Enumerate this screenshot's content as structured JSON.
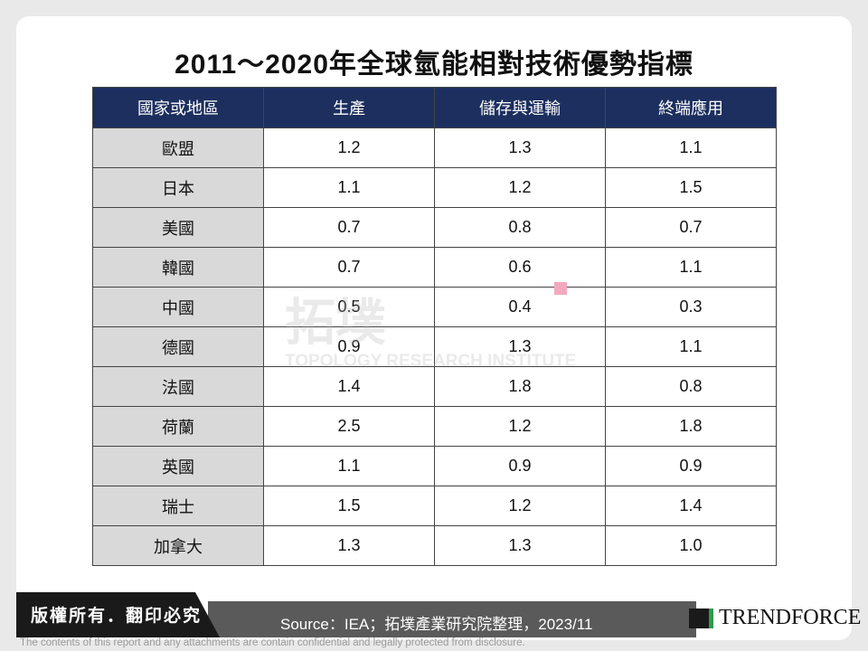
{
  "header": {
    "title": "2011～2020年全球氫能相對技術優勢指標"
  },
  "table": {
    "columns": [
      "國家或地區",
      "生產",
      "儲存與運輸",
      "終端應用"
    ],
    "rows": [
      [
        "歐盟",
        "1.2",
        "1.3",
        "1.1"
      ],
      [
        "日本",
        "1.1",
        "1.2",
        "1.5"
      ],
      [
        "美國",
        "0.7",
        "0.8",
        "0.7"
      ],
      [
        "韓國",
        "0.7",
        "0.6",
        "1.1"
      ],
      [
        "中國",
        "0.5",
        "0.4",
        "0.3"
      ],
      [
        "德國",
        "0.9",
        "1.3",
        "1.1"
      ],
      [
        "法國",
        "1.4",
        "1.8",
        "0.8"
      ],
      [
        "荷蘭",
        "2.5",
        "1.2",
        "1.8"
      ],
      [
        "英國",
        "1.1",
        "0.9",
        "0.9"
      ],
      [
        "瑞士",
        "1.5",
        "1.2",
        "1.4"
      ],
      [
        "加拿大",
        "1.3",
        "1.3",
        "1.0"
      ]
    ]
  },
  "watermark": {
    "name": "拓墣",
    "subtitle": "TOPOLOGY RESEARCH INSTITUTE"
  },
  "footer": {
    "copyright": "版權所有．翻印必究",
    "source": "Source：IEA；拓墣產業研究院整理，2023/11",
    "logo": "TRENDFORCE",
    "disclaimer": "The contents of this report and any attachments are contain confidential and legally protected from disclosure."
  }
}
